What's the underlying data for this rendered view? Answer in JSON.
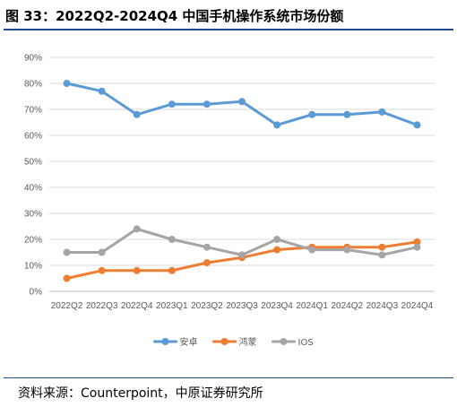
{
  "figure": {
    "title": "图 33：2022Q2-2024Q4  中国手机操作系统市场份额",
    "source": "资料来源：Counterpoint，中原证券研究所"
  },
  "chart_data": {
    "type": "line",
    "categories": [
      "2022Q2",
      "2022Q3",
      "2022Q4",
      "2023Q1",
      "2023Q2",
      "2023Q3",
      "2023Q4",
      "2024Q1",
      "2024Q2",
      "2024Q3",
      "2024Q4"
    ],
    "series": [
      {
        "name": "安卓",
        "color": "#5b9bd5",
        "values": [
          80,
          77,
          68,
          72,
          72,
          73,
          64,
          68,
          68,
          69,
          64
        ]
      },
      {
        "name": "鸿蒙",
        "color": "#ed7d31",
        "values": [
          5,
          8,
          8,
          8,
          11,
          13,
          16,
          17,
          17,
          17,
          19
        ]
      },
      {
        "name": "IOS",
        "color": "#a5a5a5",
        "values": [
          15,
          15,
          24,
          20,
          17,
          14,
          20,
          16,
          16,
          14,
          17
        ]
      }
    ],
    "yticks": [
      "0%",
      "10%",
      "20%",
      "30%",
      "40%",
      "50%",
      "60%",
      "70%",
      "80%",
      "90%"
    ],
    "ylim": [
      0,
      90
    ],
    "grid": true,
    "legend_position": "bottom"
  }
}
